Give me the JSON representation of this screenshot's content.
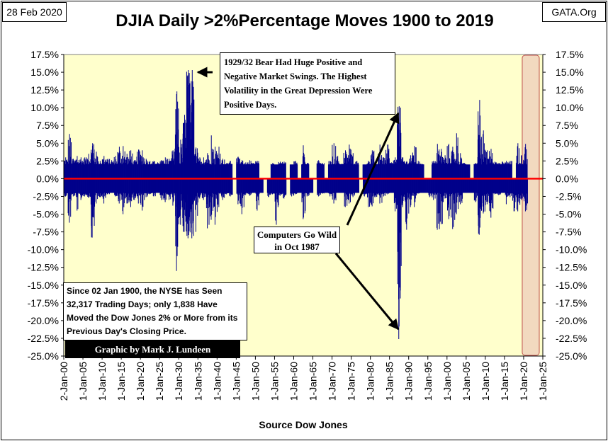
{
  "header": {
    "date": "28 Feb 2020",
    "source_site": "GATA.Org",
    "title": "DJIA Daily >2%Percentage Moves 1900 to 2019"
  },
  "annotations": {
    "bear_note": "1929/32 Bear Had Huge Positive and Negative Market Swings. The Highest Volatility in the Great Depression Were Positive Days.",
    "computers_note": "Computers Go Wild in Oct 1987",
    "summary_note": "Since 02 Jan 1900, the NYSE has Seen 32,317 Trading Days; only 1,838 Have Moved the Dow Jones 2% or More from its Previous Day's Closing Price.",
    "credit": "Graphic by Mark J. Lundeen"
  },
  "colors": {
    "plot_background": "#ffffcc",
    "bars": "#00008b",
    "zero_line": "#ff0000",
    "highlight_band": "#f2d9bf",
    "highlight_band_border": "#c0504d"
  },
  "chart_data": {
    "type": "bar",
    "title": "DJIA Daily >2%Percentage Moves 1900 to 2019",
    "xlabel": "Source Dow Jones",
    "ylabel": "",
    "ylim": [
      -25.0,
      17.5
    ],
    "y_unit": "%",
    "x_range_years": [
      1900,
      2025
    ],
    "x_tick_labels": [
      "2-Jan-00",
      "1-Jan-05",
      "1-Jan-10",
      "1-Jan-15",
      "1-Jan-20",
      "1-Jan-25",
      "1-Jan-30",
      "1-Jan-35",
      "1-Jan-40",
      "1-Jan-45",
      "1-Jan-50",
      "1-Jan-55",
      "1-Jan-60",
      "1-Jan-65",
      "1-Jan-70",
      "1-Jan-75",
      "1-Jan-80",
      "1-Jan-85",
      "1-Jan-90",
      "1-Jan-95",
      "1-Jan-00",
      "1-Jan-05",
      "1-Jan-10",
      "1-Jan-15",
      "1-Jan-20",
      "1-Jan-25"
    ],
    "y_tick_labels": [
      "17.5%",
      "15.0%",
      "12.5%",
      "10.0%",
      "7.5%",
      "5.0%",
      "2.5%",
      "0.0%",
      "-2.5%",
      "-5.0%",
      "-7.5%",
      "-10.0%",
      "-12.5%",
      "-15.0%",
      "-17.5%",
      "-20.0%",
      "-22.5%",
      "-25.0%"
    ],
    "grid": false,
    "highlight_band_years": [
      2020,
      2025
    ],
    "series": [
      {
        "values_note": "yearly approximate max positive / min negative daily % move (>2%)",
        "years": [
          1900,
          1901,
          1902,
          1903,
          1904,
          1905,
          1906,
          1907,
          1908,
          1909,
          1910,
          1911,
          1912,
          1913,
          1914,
          1915,
          1916,
          1917,
          1918,
          1919,
          1920,
          1921,
          1922,
          1923,
          1924,
          1925,
          1926,
          1927,
          1928,
          1929,
          1930,
          1931,
          1932,
          1933,
          1934,
          1935,
          1936,
          1937,
          1938,
          1939,
          1940,
          1941,
          1942,
          1943,
          1944,
          1945,
          1946,
          1947,
          1948,
          1949,
          1950,
          1951,
          1952,
          1953,
          1954,
          1955,
          1956,
          1957,
          1958,
          1959,
          1960,
          1961,
          1962,
          1963,
          1964,
          1965,
          1966,
          1967,
          1968,
          1969,
          1970,
          1971,
          1972,
          1973,
          1974,
          1975,
          1976,
          1977,
          1978,
          1979,
          1980,
          1981,
          1982,
          1983,
          1984,
          1985,
          1986,
          1987,
          1988,
          1989,
          1990,
          1991,
          1992,
          1993,
          1994,
          1995,
          1996,
          1997,
          1998,
          1999,
          2000,
          2001,
          2002,
          2003,
          2004,
          2005,
          2006,
          2007,
          2008,
          2009,
          2010,
          2011,
          2012,
          2013,
          2014,
          2015,
          2016,
          2017,
          2018,
          2019,
          2020
        ],
        "max": [
          3.0,
          6.3,
          2.8,
          3.2,
          3.0,
          3.0,
          3.5,
          5.0,
          3.8,
          2.5,
          3.2,
          2.8,
          2.6,
          3.2,
          4.5,
          4.6,
          3.5,
          4.0,
          2.6,
          4.1,
          4.0,
          2.8,
          2.5,
          2.5,
          2.3,
          2.6,
          3.0,
          2.8,
          4.0,
          12.3,
          5.5,
          9.0,
          15.3,
          15.3,
          4.4,
          3.0,
          3.0,
          3.6,
          6.1,
          4.5,
          4.5,
          2.8,
          2.2,
          2.5,
          0,
          3.1,
          2.6,
          2.3,
          2.6,
          2.2,
          2.5,
          0,
          0,
          0,
          2.2,
          2.0,
          2.4,
          2.4,
          0,
          2.0,
          2.5,
          0,
          4.7,
          2.2,
          0,
          0,
          2.6,
          2.2,
          0,
          2.5,
          5.0,
          3.2,
          2.1,
          4.0,
          4.8,
          3.6,
          2.5,
          0,
          2.0,
          2.5,
          4.0,
          2.4,
          4.8,
          3.0,
          4.8,
          2.3,
          3.0,
          10.2,
          3.0,
          2.5,
          3.3,
          4.6,
          2.5,
          2.1,
          0,
          0,
          2.5,
          4.9,
          4.2,
          3.3,
          4.9,
          4.5,
          6.4,
          3.6,
          2.2,
          2.0,
          0,
          2.2,
          11.1,
          6.8,
          4.0,
          4.2,
          2.4,
          2.2,
          2.4,
          2.5,
          2.5,
          0,
          5.0,
          3.3,
          4.9
        ],
        "min": [
          -2.5,
          -6.2,
          -2.5,
          -4.5,
          -3.0,
          -2.5,
          -2.7,
          -8.3,
          -3.5,
          -2.6,
          -3.5,
          -2.2,
          -2.0,
          -2.5,
          -3.5,
          -5.0,
          -3.5,
          -4.0,
          -3.0,
          -3.5,
          -4.5,
          -2.6,
          -2.2,
          -2.5,
          -2.0,
          -3.0,
          -3.3,
          -3.0,
          -3.8,
          -13.0,
          -6.5,
          -7.5,
          -8.4,
          -8.4,
          -7.5,
          -2.8,
          -3.0,
          -7.0,
          -5.8,
          -6.5,
          -4.0,
          -3.0,
          -2.2,
          -2.5,
          0,
          -3.6,
          -5.0,
          -2.3,
          -2.4,
          -2.0,
          -4.5,
          -2.0,
          0,
          -2.6,
          -2.2,
          -6.5,
          -2.4,
          -2.8,
          0,
          -2.5,
          -2.2,
          -2.0,
          -5.7,
          -2.5,
          -2.0,
          0,
          -2.5,
          -2.1,
          -2.0,
          -2.5,
          -3.5,
          -2.0,
          -2.0,
          -4.0,
          -3.5,
          -2.6,
          -2.0,
          0,
          -2.5,
          -4.0,
          -3.9,
          -2.6,
          -3.5,
          -2.5,
          -2.2,
          -2.0,
          -4.6,
          -22.6,
          -4.0,
          -7.2,
          -4.0,
          -4.0,
          -2.1,
          -2.0,
          -2.0,
          -2.6,
          -3.0,
          -7.2,
          -6.4,
          -2.8,
          -5.7,
          -7.1,
          -5.0,
          -3.6,
          -2.0,
          -2.0,
          -2.0,
          -3.3,
          -7.9,
          -4.9,
          -3.6,
          -5.5,
          -2.2,
          -2.3,
          -2.0,
          -3.6,
          -2.6,
          -4.6,
          -4.6,
          -3.0,
          -4.6
        ]
      }
    ]
  }
}
